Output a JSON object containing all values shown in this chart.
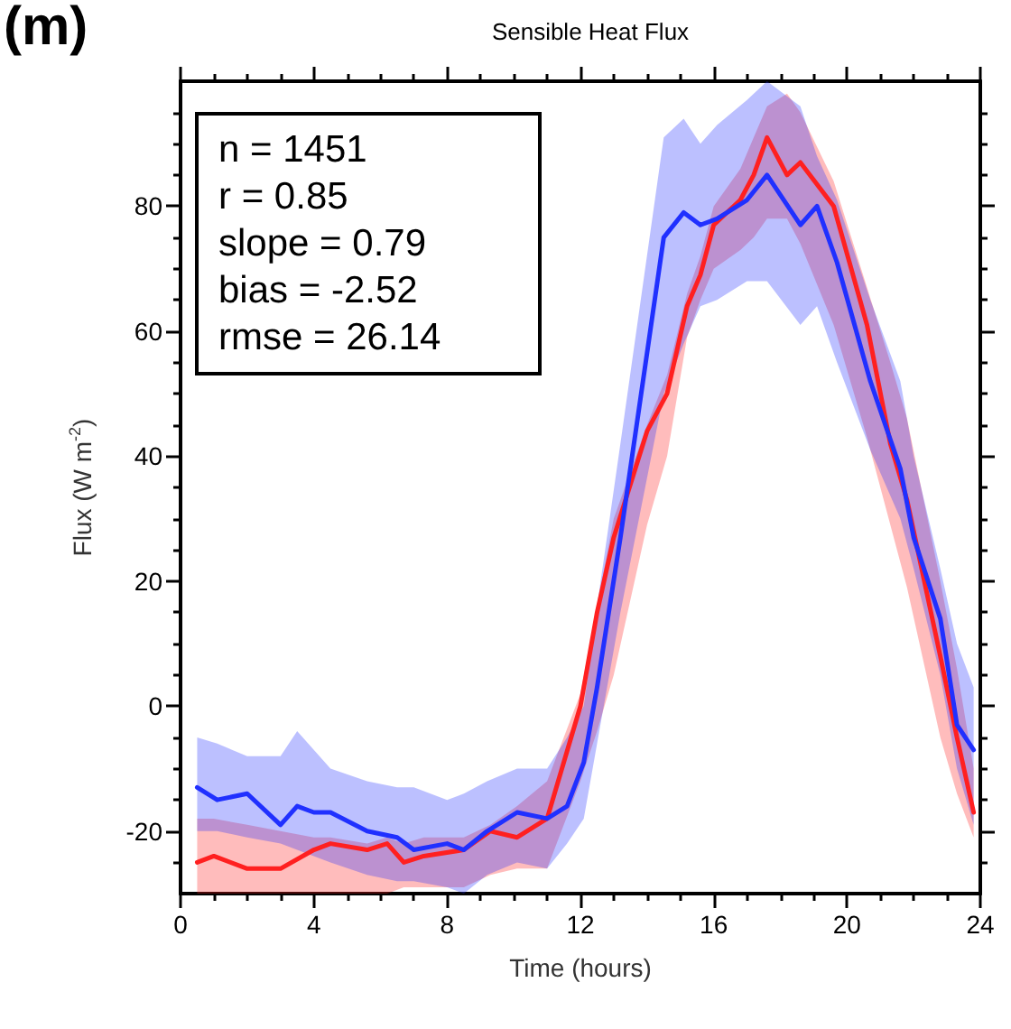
{
  "chart_data": {
    "type": "line",
    "title": "Sensible Heat Flux",
    "xlabel": "Time (hours)",
    "ylabel": "Flux (W m$^{-2}$)",
    "annotations": [
      "(m)",
      "n = 1451",
      "r = 0.85",
      "slope = 0.79",
      "bias = -2.52",
      "rmse = 26.14"
    ],
    "series": [
      {
        "color": "#ff2020",
        "x": [
          0.5,
          1,
          2,
          3,
          4,
          4.5,
          5.6,
          6.2,
          6.7,
          7.3,
          8.5,
          9.3,
          10.1,
          11,
          12,
          12.5,
          13,
          14,
          14.6,
          15.2,
          15.6,
          16,
          16.8,
          17.2,
          17.6,
          18.2,
          18.6,
          19.6,
          20.6,
          21.3,
          21.8,
          22.8,
          23.3,
          23.8
        ],
        "values": [
          -25,
          -24,
          -26,
          -26,
          -23,
          -22,
          -23,
          -22,
          -25,
          -24,
          -23,
          -20,
          -21,
          -18,
          0,
          15,
          27,
          44,
          50,
          64,
          69,
          77,
          81,
          85,
          91,
          85,
          87,
          80,
          61,
          42,
          33,
          8,
          -5,
          -17
        ],
        "lower": [
          -30,
          -30,
          -30,
          -30,
          -30,
          -30,
          -30,
          -30,
          -29,
          -29,
          -29,
          -27,
          -26,
          -26,
          -12,
          -4,
          5,
          29,
          40,
          59,
          65,
          70,
          73,
          75,
          78,
          78,
          74,
          61,
          43,
          29,
          19,
          -5,
          -14,
          -21
        ],
        "upper": [
          -18,
          -18,
          -19,
          -20,
          -21,
          -21,
          -22,
          -21,
          -22,
          -21,
          -21,
          -19,
          -16,
          -12,
          2,
          16,
          30,
          45,
          53,
          66,
          72,
          80,
          86,
          91,
          96,
          98,
          95,
          84,
          67,
          55,
          46,
          20,
          6,
          -10
        ]
      },
      {
        "color": "#2030ff",
        "x": [
          0.5,
          1.1,
          2,
          3,
          3.5,
          4,
          4.5,
          5.6,
          6.5,
          7,
          8,
          8.5,
          9.2,
          10.1,
          11,
          11.6,
          12.1,
          12.5,
          13.2,
          14.5,
          15.1,
          15.6,
          16.1,
          17,
          17.6,
          18.6,
          19.1,
          19.7,
          20.7,
          21.6,
          22,
          22.8,
          23.3,
          23.8
        ],
        "values": [
          -13,
          -15,
          -14,
          -19,
          -16,
          -17,
          -17,
          -20,
          -21,
          -23,
          -22,
          -23,
          -20,
          -17,
          -18,
          -16,
          -9,
          3,
          27,
          75,
          79,
          77,
          78,
          81,
          85,
          77,
          80,
          71,
          52,
          38,
          27,
          14,
          -3,
          -7
        ],
        "lower": [
          -20,
          -20,
          -21,
          -22,
          -23,
          -24,
          -25,
          -27,
          -28,
          -28,
          -29,
          -30,
          -27,
          -25,
          -26,
          -22,
          -18,
          -6,
          15,
          50,
          58,
          64,
          65,
          68,
          68,
          61,
          64,
          55,
          41,
          30,
          22,
          5,
          -10,
          -19
        ],
        "upper": [
          -5,
          -6,
          -8,
          -8,
          -4,
          -7,
          -10,
          -12,
          -13,
          -13,
          -15,
          -14,
          -12,
          -10,
          -10,
          -5,
          0,
          16,
          42,
          91,
          94,
          90,
          93,
          97,
          100,
          96,
          88,
          81,
          65,
          52,
          40,
          22,
          10,
          3
        ]
      }
    ],
    "xlim": [
      0,
      24
    ],
    "xticks": [
      0,
      {
        "value": 1,
        "label": null
      },
      {
        "value": 2,
        "label": null
      },
      {
        "value": 3,
        "label": null
      },
      4,
      {
        "value": 5,
        "label": null
      },
      {
        "value": 6,
        "label": null
      },
      {
        "value": 7,
        "label": null
      },
      8,
      {
        "value": 9,
        "label": null
      },
      {
        "value": 10,
        "label": null
      },
      {
        "value": 11,
        "label": null
      },
      12,
      {
        "value": 13,
        "label": null
      },
      {
        "value": 14,
        "label": null
      },
      {
        "value": 15,
        "label": null
      },
      16,
      {
        "value": 17,
        "label": null
      },
      {
        "value": 18,
        "label": null
      },
      {
        "value": 19,
        "label": null
      },
      20,
      {
        "value": 21,
        "label": null
      },
      {
        "value": 22,
        "label": null
      },
      {
        "value": 23,
        "label": null
      },
      24
    ],
    "ylim": [
      -30,
      100
    ],
    "yticks": [
      {
        "value": -25,
        "label": null
      },
      -20,
      {
        "value": -15,
        "label": null
      },
      {
        "value": -10,
        "label": null
      },
      {
        "value": -5,
        "label": null
      },
      0,
      {
        "value": 5,
        "label": null
      },
      {
        "value": 10,
        "label": null
      },
      {
        "value": 15,
        "label": null
      },
      20,
      {
        "value": 25,
        "label": null
      },
      {
        "value": 30,
        "label": null
      },
      {
        "value": 35,
        "label": null
      },
      40,
      {
        "value": 45,
        "label": null
      },
      {
        "value": 50,
        "label": null
      },
      {
        "value": 55,
        "label": null
      },
      60,
      {
        "value": 65,
        "label": null
      },
      {
        "value": 70,
        "label": null
      },
      {
        "value": 75,
        "label": null
      },
      80,
      {
        "value": 85,
        "label": null
      },
      {
        "value": 90,
        "label": null
      },
      {
        "value": 95,
        "label": null
      }
    ],
    "grid": false,
    "legend": false,
    "marker": "none",
    "line_style": "solid"
  }
}
